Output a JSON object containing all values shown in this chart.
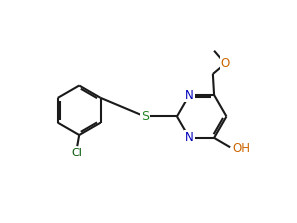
{
  "bg_color": "#ffffff",
  "line_color": "#1a1a1a",
  "N_color": "#0000bb",
  "O_color": "#cc6600",
  "S_color": "#228822",
  "Cl_color": "#005500",
  "lw": 1.5,
  "figsize": [
    2.97,
    2.23
  ],
  "dpi": 100,
  "xlim": [
    -1,
    11
  ],
  "ylim": [
    -0.5,
    8.0
  ]
}
